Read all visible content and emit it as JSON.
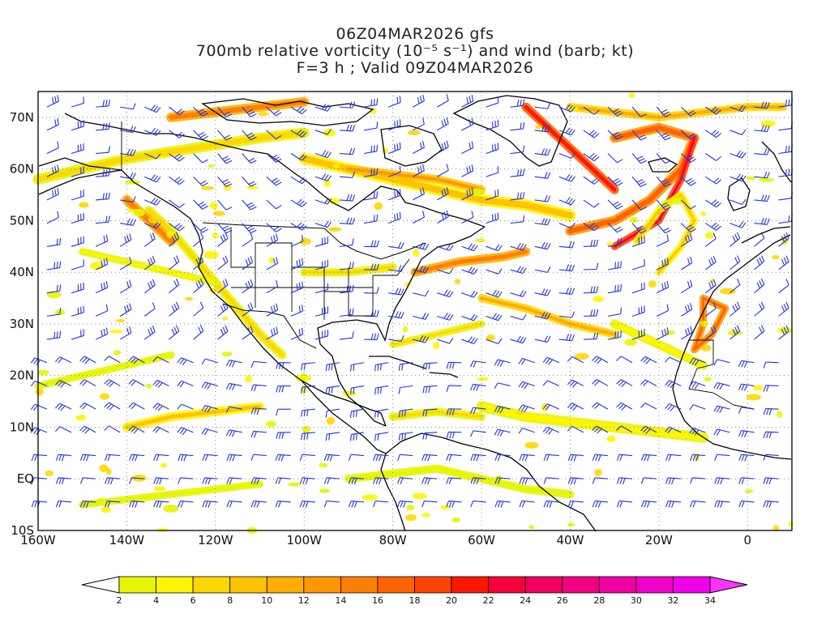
{
  "title": {
    "line1": "06Z04MAR2026 gfs",
    "line2": "700mb relative vorticity (10⁻⁵ s⁻¹) and wind (barb; kt)",
    "line3": "F=3 h ; Valid 09Z04MAR2026"
  },
  "map": {
    "lon_range": [
      -160,
      10
    ],
    "lat_range": [
      -10,
      75
    ],
    "lat_labels": [
      "70N",
      "60N",
      "50N",
      "40N",
      "30N",
      "20N",
      "10N",
      "EQ",
      "10S"
    ],
    "lon_labels": [
      "160W",
      "140W",
      "120W",
      "100W",
      "80W",
      "60W",
      "40W",
      "20W",
      "0"
    ],
    "gridlines": true,
    "barb_color": "#2233dd"
  },
  "colorbar": {
    "labels": [
      "2",
      "4",
      "6",
      "8",
      "10",
      "12",
      "14",
      "16",
      "18",
      "20",
      "22",
      "24",
      "26",
      "28",
      "30",
      "32",
      "34"
    ],
    "colors": [
      "#e6f500",
      "#fff500",
      "#ffd700",
      "#ffc300",
      "#ffad00",
      "#ff9700",
      "#ff7f00",
      "#ff6300",
      "#ff4300",
      "#ff1700",
      "#f5003a",
      "#f00060",
      "#f00082",
      "#f000a3",
      "#f000c8",
      "#f000ea"
    ],
    "under_color": "#ffffff",
    "over_color": "#ff33ff"
  }
}
